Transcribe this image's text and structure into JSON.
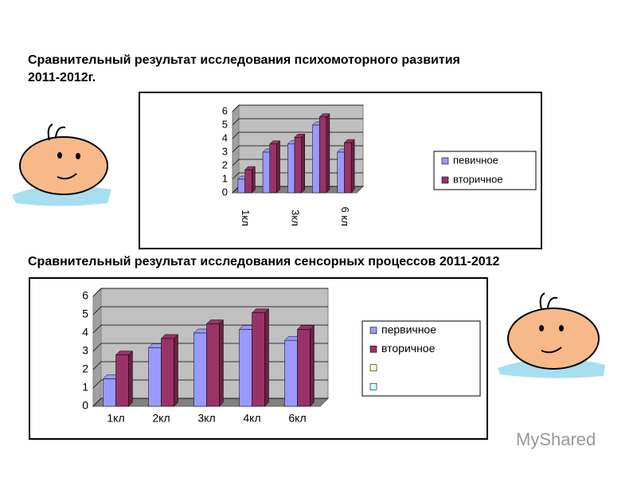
{
  "chart_data": [
    {
      "type": "bar",
      "title": "Сравнительный результат исследования психомоторного развития 2011-2012г.",
      "categories": [
        "1кл",
        null,
        "3кл",
        null,
        "6 кл"
      ],
      "series": [
        {
          "name": "певичное",
          "color": "#9999ff",
          "values": [
            1,
            3,
            3.6,
            5,
            3
          ]
        },
        {
          "name": "вторичное",
          "color": "#993366",
          "values": [
            1.7,
            3.6,
            4.1,
            5.6,
            3.7
          ]
        }
      ],
      "ylim": [
        0,
        6
      ],
      "yticks": [
        0,
        1,
        2,
        3,
        4,
        5,
        6
      ],
      "grid": true,
      "legend": "right"
    },
    {
      "type": "bar",
      "title": "Сравнительный результат исследования сенсорных процессов 2011-2012",
      "categories": [
        "1кл",
        "2кл",
        "3кл",
        "4кл",
        "6кл"
      ],
      "series": [
        {
          "name": "первичное",
          "color": "#9999ff",
          "values": [
            1.5,
            3.2,
            4,
            4.2,
            3.6
          ]
        },
        {
          "name": "вторичное",
          "color": "#993366",
          "values": [
            2.8,
            3.7,
            4.5,
            5.1,
            4.2
          ]
        }
      ],
      "ylim": [
        0,
        6
      ],
      "yticks": [
        0,
        1,
        2,
        3,
        4,
        5,
        6
      ],
      "grid": true,
      "legend": "right"
    }
  ],
  "watermark": "MyShared"
}
